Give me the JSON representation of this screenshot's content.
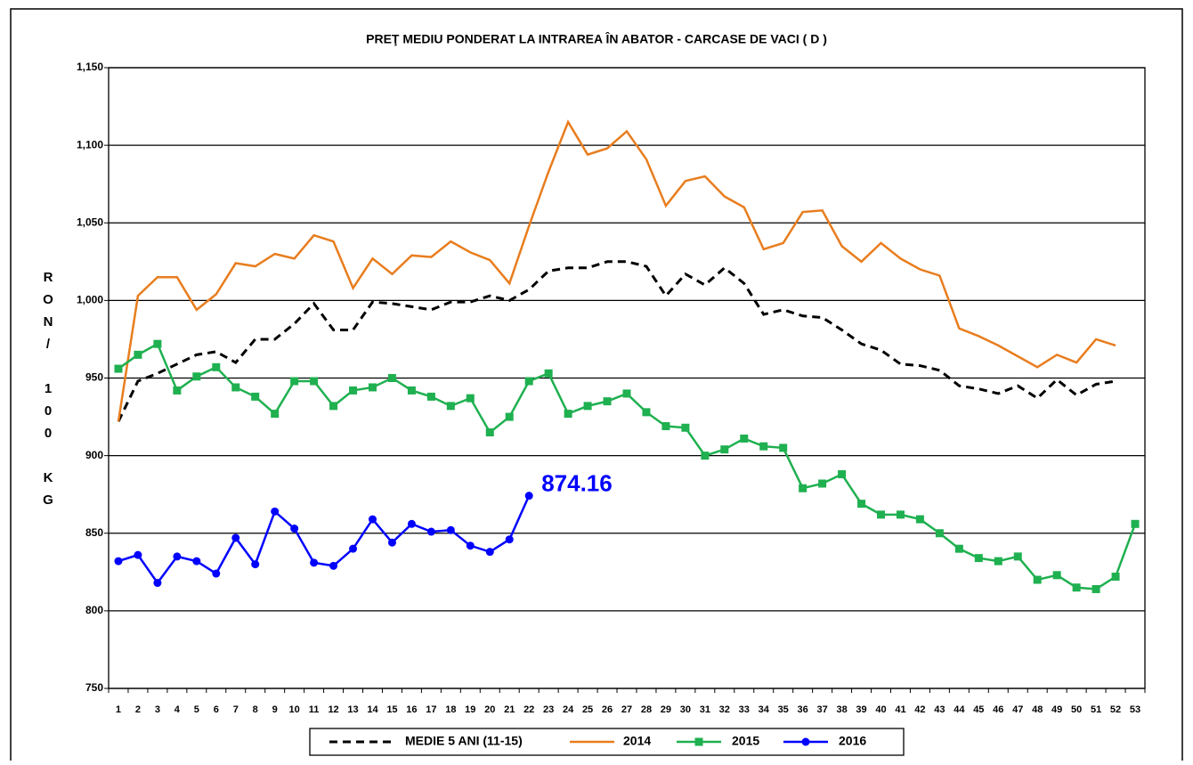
{
  "chart_data": {
    "type": "line",
    "title": "PREŢ MEDIU PONDERAT LA INTRAREA ÎN ABATOR - CARCASE DE VACI ( D )",
    "y_label": "RON/ 100 KG",
    "categories": [
      1,
      2,
      3,
      4,
      5,
      6,
      7,
      8,
      9,
      10,
      11,
      12,
      13,
      14,
      15,
      16,
      17,
      18,
      19,
      20,
      21,
      22,
      23,
      24,
      25,
      26,
      27,
      28,
      29,
      30,
      31,
      32,
      33,
      34,
      35,
      36,
      37,
      38,
      39,
      40,
      41,
      42,
      43,
      44,
      45,
      46,
      47,
      48,
      49,
      50,
      51,
      52,
      53
    ],
    "ylim": [
      750,
      1150
    ],
    "yticks": [
      750,
      800,
      850,
      900,
      950,
      {
        "value": 1000,
        "label": "1,000"
      },
      {
        "value": 1050,
        "label": "1,050"
      },
      {
        "value": 1100,
        "label": "1,100"
      },
      {
        "value": 1150,
        "label": "1,150"
      }
    ],
    "grid": true,
    "legend": "bottom",
    "series": [
      {
        "name": "MEDIE 5 ANI (11-15)",
        "color": "#000000",
        "dashed": true,
        "marker": "none",
        "values": [
          922,
          948,
          953,
          959,
          965,
          967,
          960,
          975,
          975,
          985,
          998,
          981,
          981,
          999,
          998,
          996,
          994,
          999,
          999,
          1003,
          1000,
          1007,
          1019,
          1021,
          1021,
          1025,
          1025,
          1022,
          1003,
          1017,
          1010,
          1021,
          1011,
          991,
          994,
          990,
          989,
          981,
          972,
          968,
          959,
          958,
          955,
          945,
          943,
          940,
          945,
          937,
          949,
          939,
          946,
          948,
          null
        ]
      },
      {
        "name": "2014",
        "color": "#e87d1e",
        "dashed": false,
        "marker": "none",
        "values": [
          922,
          1003,
          1015,
          1015,
          994,
          1004,
          1024,
          1022,
          1030,
          1027,
          1042,
          1038,
          1008,
          1027,
          1017,
          1029,
          1028,
          1038,
          1031,
          1026,
          1011,
          1048,
          1083,
          1115,
          1094,
          1098,
          1109,
          1091,
          1061,
          1077,
          1080,
          1067,
          1060,
          1033,
          1037,
          1057,
          1058,
          1035,
          1025,
          1037,
          1027,
          1020,
          1016,
          982,
          977,
          971,
          964,
          957,
          965,
          960,
          975,
          971,
          null
        ]
      },
      {
        "name": "2015",
        "color": "#1fb050",
        "dashed": false,
        "marker": "square",
        "values": [
          956,
          965,
          972,
          942,
          951,
          957,
          944,
          938,
          927,
          948,
          948,
          932,
          942,
          944,
          950,
          942,
          938,
          932,
          937,
          915,
          925,
          948,
          953,
          927,
          932,
          935,
          940,
          928,
          919,
          918,
          900,
          904,
          911,
          906,
          905,
          879,
          882,
          888,
          869,
          862,
          862,
          859,
          850,
          840,
          834,
          832,
          835,
          820,
          823,
          815,
          814,
          822,
          856
        ]
      },
      {
        "name": "2016",
        "color": "#0000ff",
        "dashed": false,
        "marker": "circle",
        "label_last": true,
        "values": [
          832,
          836,
          818,
          835,
          832,
          824,
          847,
          830,
          864,
          853,
          831,
          829,
          840,
          859,
          844,
          856,
          851,
          852,
          842,
          838,
          846,
          874.16,
          null,
          null,
          null,
          null,
          null,
          null,
          null,
          null,
          null,
          null,
          null,
          null,
          null,
          null,
          null,
          null,
          null,
          null,
          null,
          null,
          null,
          null,
          null,
          null,
          null,
          null,
          null,
          null,
          null,
          null,
          null
        ]
      }
    ]
  }
}
